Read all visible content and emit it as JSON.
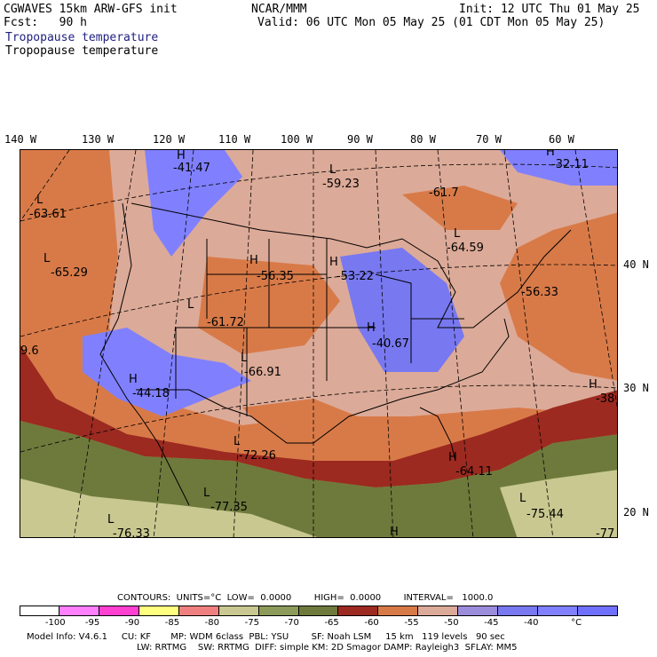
{
  "header": {
    "line1_left": "CGWAVES 15km ARW-GFS init",
    "line1_center": "NCAR/MMM",
    "line1_right": "Init: 12 UTC Thu 01 May 25",
    "line2_left": "Fcst:   90 h",
    "line2_right": "Valid: 06 UTC Mon 05 May 25 (01 CDT Mon 05 May 25)",
    "field_blue": "Tropopause temperature",
    "field_black": "Tropopause temperature"
  },
  "longitudes": [
    "140 W",
    "130 W",
    "120 W",
    "110 W",
    "100 W",
    "90 W",
    "80 W",
    "70 W",
    "60 W"
  ],
  "latitudes": [
    "40 N",
    "30 N",
    "20 N"
  ],
  "map_labels": [
    {
      "sym": "H",
      "val": "-41.47"
    },
    {
      "sym": "L",
      "val": "-59.23"
    },
    {
      "sym": "",
      "val": "-61.7"
    },
    {
      "sym": "H",
      "val": "-32.11"
    },
    {
      "sym": "L",
      "val": "-63.61"
    },
    {
      "sym": "L",
      "val": "-65.29"
    },
    {
      "sym": "H",
      "val": "-56.35"
    },
    {
      "sym": "H",
      "val": "-53.22"
    },
    {
      "sym": "L",
      "val": "-64.59"
    },
    {
      "sym": "",
      "val": "-56.33"
    },
    {
      "sym": "L",
      "val": "-61.72"
    },
    {
      "sym": "H",
      "val": "-40.67"
    },
    {
      "sym": "",
      "val": "9.6"
    },
    {
      "sym": "L",
      "val": "-66.91"
    },
    {
      "sym": "H",
      "val": "-44.18"
    },
    {
      "sym": "H",
      "val": "-38"
    },
    {
      "sym": "L",
      "val": "-72.26"
    },
    {
      "sym": "H",
      "val": "-64.11"
    },
    {
      "sym": "L",
      "val": "-77.35"
    },
    {
      "sym": "L",
      "val": "-75.44"
    },
    {
      "sym": "L",
      "val": "-76.33"
    },
    {
      "sym": "",
      "val": "-77"
    },
    {
      "sym": "H",
      "val": ""
    }
  ],
  "legend": {
    "contours_line": "CONTOURS:  UNITS=°C  LOW=  0.0000        HIGH=  0.0000        INTERVAL=   1000.0",
    "colors": [
      "#ffffff",
      "#ff80ff",
      "#ff40d0",
      "#ffff80",
      "#f08080",
      "#c8c890",
      "#8c9a5a",
      "#6e7a3c",
      "#9c2a20",
      "#d87a48",
      "#dcaa98",
      "#9c8cdc",
      "#7878f0",
      "#8080ff",
      "#7070ff"
    ],
    "ticks": [
      "-100",
      "-95",
      "-90",
      "-85",
      "-80",
      "-75",
      "-70",
      "-65",
      "-60",
      "-55",
      "-50",
      "-45",
      "-40",
      "°C"
    ]
  },
  "footer": {
    "line1": "Model Info: V4.6.1     CU: KF       MP: WDM 6class  PBL: YSU        SF: Noah LSM     15 km   119 levels   90 sec",
    "line2": "LW: RRTMG    SW: RRTMG  DIFF: simple KM: 2D Smagor DAMP: Rayleigh3  SFLAY: MM5"
  }
}
